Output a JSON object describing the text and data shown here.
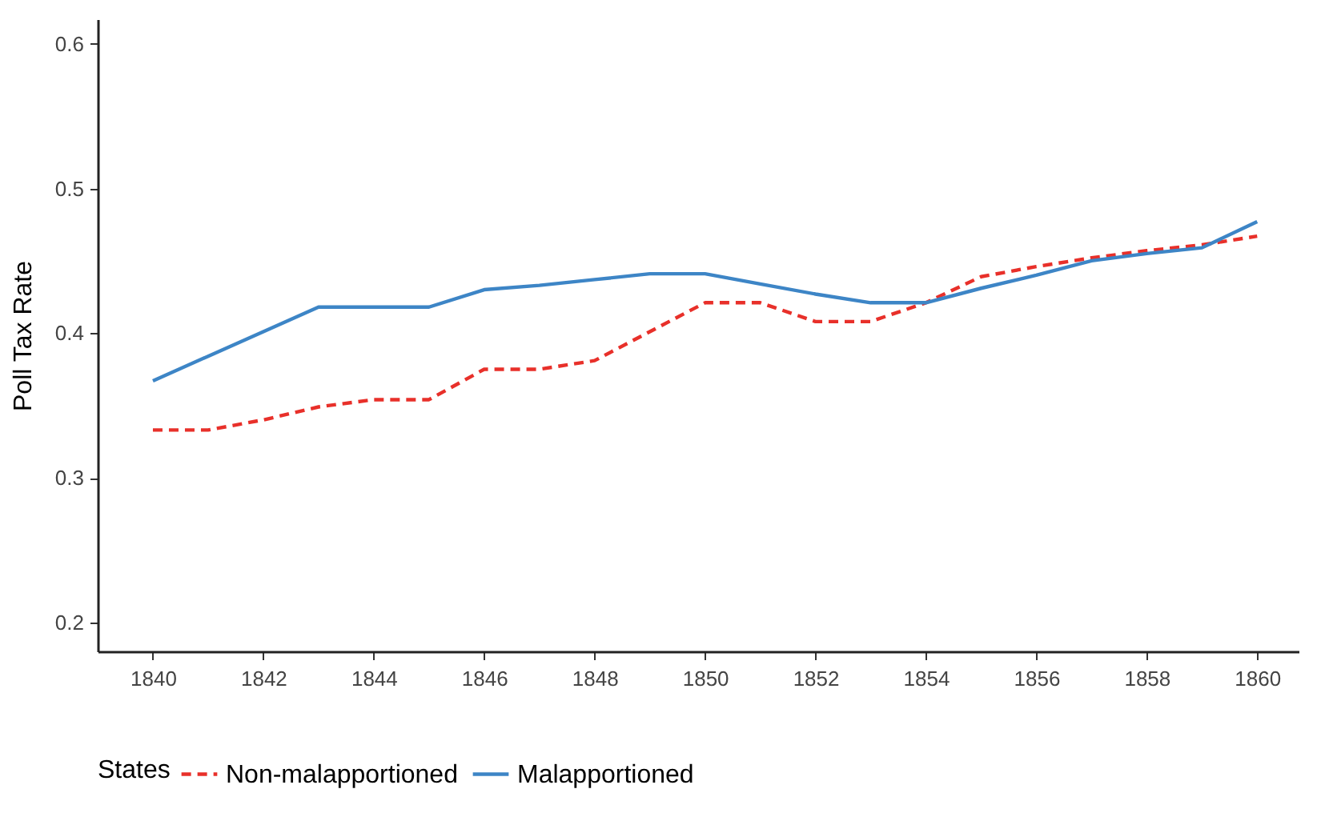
{
  "chart_data": {
    "type": "line",
    "ylabel": "Poll Tax Rate",
    "legend_title": "States",
    "legend": "bottom",
    "grid": false,
    "x": [
      1840,
      1841,
      1842,
      1843,
      1844,
      1845,
      1846,
      1847,
      1848,
      1849,
      1850,
      1851,
      1852,
      1853,
      1854,
      1855,
      1856,
      1857,
      1858,
      1859,
      1860
    ],
    "xlim": [
      1839,
      1860.75
    ],
    "xticks": [
      1840,
      1842,
      1844,
      1846,
      1848,
      1850,
      1852,
      1854,
      1856,
      1858,
      1860
    ],
    "ylim": [
      0.18,
      0.617
    ],
    "yticks": [
      0.2,
      0.3,
      0.4,
      0.5,
      0.6
    ],
    "series": [
      {
        "name": "Non-malapportioned",
        "color": "#e8302a",
        "line_style": "dashed",
        "values": [
          0.333,
          0.333,
          0.34,
          0.349,
          0.354,
          0.354,
          0.375,
          0.375,
          0.381,
          0.401,
          0.421,
          0.421,
          0.408,
          0.408,
          0.421,
          0.439,
          0.446,
          0.452,
          0.457,
          0.461,
          0.467
        ]
      },
      {
        "name": "Malapportioned",
        "color": "#3d85c6",
        "line_style": "solid",
        "values": [
          0.367,
          0.384,
          0.401,
          0.418,
          0.418,
          0.418,
          0.43,
          0.433,
          0.437,
          0.441,
          0.441,
          0.434,
          0.427,
          0.421,
          0.421,
          0.431,
          0.44,
          0.45,
          0.455,
          0.459,
          0.477
        ]
      }
    ]
  }
}
